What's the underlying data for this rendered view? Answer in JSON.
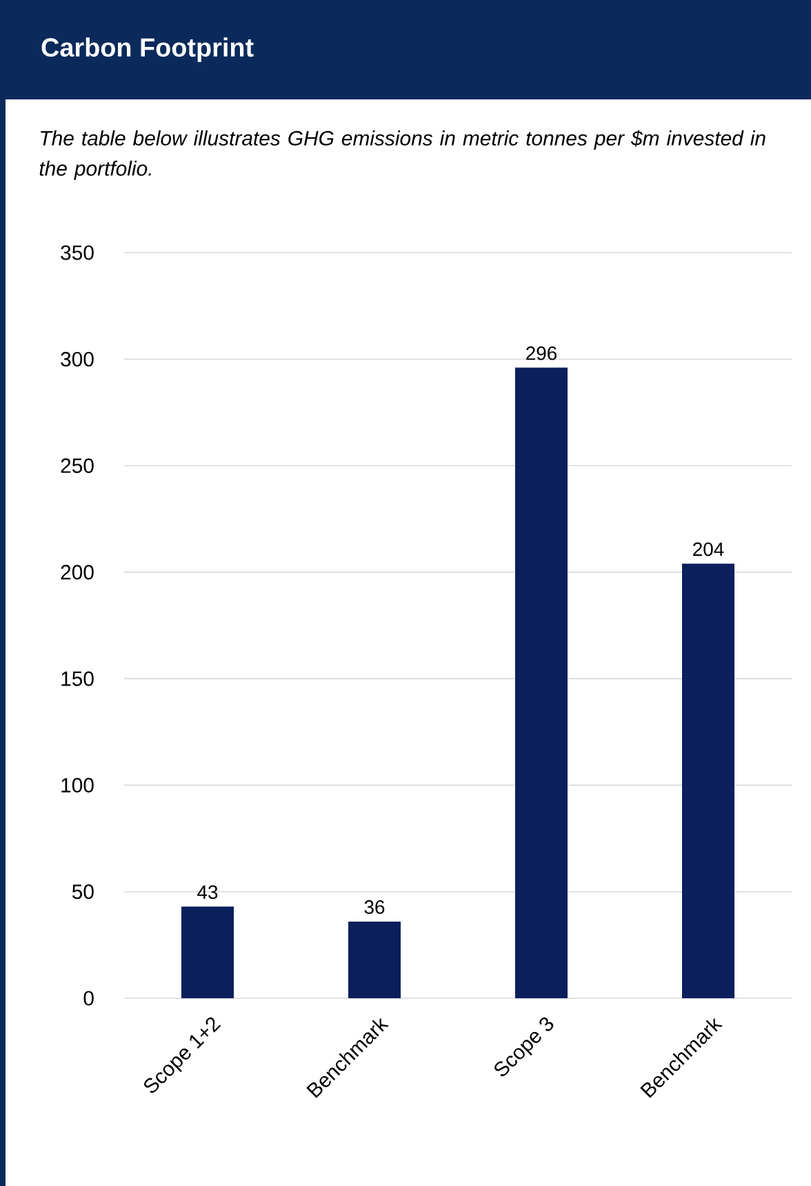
{
  "chart_data": {
    "type": "bar",
    "title": "Carbon Footprint",
    "subtitle": "The table below illustrates GHG emissions in metric tonnes per $m invested in the portfolio.",
    "categories": [
      "Scope 1+2",
      "Benchmark",
      "Scope 3",
      "Benchmark"
    ],
    "values": [
      43,
      36,
      296,
      204
    ],
    "color": "#0a1f5c",
    "ylim": [
      0,
      350
    ],
    "yticks": [
      0,
      50,
      100,
      150,
      200,
      250,
      300,
      350
    ],
    "grid": "y",
    "data_labels": true
  }
}
